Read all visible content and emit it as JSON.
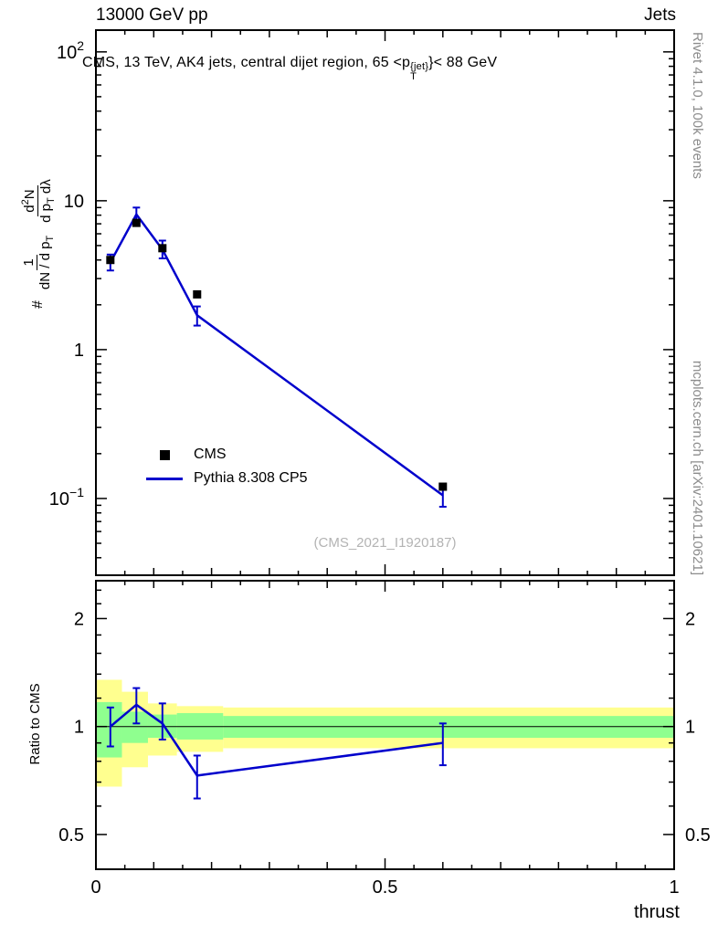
{
  "header": {
    "left": "13000 GeV pp",
    "right": "Jets"
  },
  "main_plot": {
    "title_prefix": "CMS, 13 TeV, AK4 jets, central dijet region, 65 <p",
    "title_sup": "{jet}",
    "title_sub": "T",
    "title_suffix": "}< 88 GeV",
    "ylabel": {
      "hash": "#",
      "frac1_num": "1",
      "frac1_den_main": "dN / d p",
      "frac1_den_sub": "T",
      "frac2_num_main": "d",
      "frac2_num_sup": "2",
      "frac2_num_end": "N",
      "frac2_den_main": "d p",
      "frac2_den_sub": "T",
      "frac2_den_end": " dλ"
    },
    "watermark": "(CMS_2021_I1920187)"
  },
  "legend": [
    {
      "label": "CMS",
      "marker": "black-square"
    },
    {
      "label": "Pythia 8.308 CP5",
      "marker": "blue-line"
    }
  ],
  "ratio_plot": {
    "ylabel": "Ratio to CMS"
  },
  "xlabel": "thrust",
  "side_notes": {
    "top_right": "Rivet 4.1.0,  100k events",
    "bottom_right": "mcplots.cern.ch [arXiv:2401.10621]"
  },
  "colors": {
    "pythia": "#0000cc",
    "cms": "#000000",
    "band_yellow": "#ffff8f",
    "band_green": "#8fff8f",
    "gray_text": "#8c8c8c"
  },
  "chart_data": [
    {
      "type": "line+scatter",
      "panel": "main",
      "xlabel": "thrust",
      "yscale": "log",
      "xlim": [
        0,
        1
      ],
      "ylim": [
        0.0305,
        140
      ],
      "x": [
        0.025,
        0.07,
        0.115,
        0.175,
        0.6
      ],
      "series": [
        {
          "name": "CMS",
          "style": "black-squares",
          "values": [
            4.0,
            7.1,
            4.8,
            2.35,
            0.12
          ]
        },
        {
          "name": "Pythia 8.308 CP5",
          "style": "blue-line",
          "values": [
            3.85,
            8.1,
            4.7,
            1.7,
            0.105
          ],
          "err_lo": [
            3.4,
            7.2,
            4.1,
            1.45,
            0.088
          ],
          "err_hi": [
            4.35,
            9.0,
            5.4,
            1.95,
            0.125
          ]
        }
      ],
      "yticks": [
        {
          "v": 100,
          "base": "10",
          "sup": "2"
        },
        {
          "v": 10,
          "base": "10",
          "sup": ""
        },
        {
          "v": 1,
          "base": "1",
          "sup": ""
        },
        {
          "v": 0.1,
          "base": "10",
          "sup": "−1"
        }
      ]
    },
    {
      "type": "line",
      "panel": "ratio",
      "yscale": "log",
      "xlim": [
        0,
        1
      ],
      "ylim": [
        0.4,
        2.55
      ],
      "x": [
        0.025,
        0.07,
        0.115,
        0.175,
        0.6
      ],
      "values": [
        1.0,
        1.15,
        1.02,
        0.73,
        0.9
      ],
      "err_lo": [
        0.88,
        1.02,
        0.92,
        0.63,
        0.78
      ],
      "err_hi": [
        1.13,
        1.28,
        1.16,
        0.83,
        1.02
      ],
      "reference_line": 1,
      "bands": {
        "yellow": [
          {
            "x0": 0,
            "x1": 0.045,
            "lo": 0.68,
            "hi": 1.35
          },
          {
            "x0": 0.045,
            "x1": 0.09,
            "lo": 0.77,
            "hi": 1.25
          },
          {
            "x0": 0.09,
            "x1": 0.14,
            "lo": 0.83,
            "hi": 1.16
          },
          {
            "x0": 0.14,
            "x1": 0.22,
            "lo": 0.85,
            "hi": 1.14
          },
          {
            "x0": 0.22,
            "x1": 1,
            "lo": 0.87,
            "hi": 1.13
          }
        ],
        "green": [
          {
            "x0": 0,
            "x1": 0.045,
            "lo": 0.82,
            "hi": 1.17
          },
          {
            "x0": 0.045,
            "x1": 0.09,
            "lo": 0.9,
            "hi": 1.1
          },
          {
            "x0": 0.09,
            "x1": 0.14,
            "lo": 0.93,
            "hi": 1.08
          },
          {
            "x0": 0.14,
            "x1": 0.22,
            "lo": 0.92,
            "hi": 1.09
          },
          {
            "x0": 0.22,
            "x1": 1,
            "lo": 0.93,
            "hi": 1.07
          }
        ]
      },
      "yticks": [
        {
          "v": 2,
          "label": "2"
        },
        {
          "v": 1,
          "label": "1"
        },
        {
          "v": 0.5,
          "label": "0.5"
        }
      ],
      "yticks_minor": [
        0.4,
        0.6,
        0.7,
        0.8,
        0.9,
        1.2,
        1.4,
        1.6,
        1.8,
        2.2,
        2.4
      ],
      "xticks": [
        {
          "v": 0,
          "label": "0"
        },
        {
          "v": 0.5,
          "label": "0.5"
        },
        {
          "v": 1,
          "label": "1"
        }
      ]
    }
  ]
}
